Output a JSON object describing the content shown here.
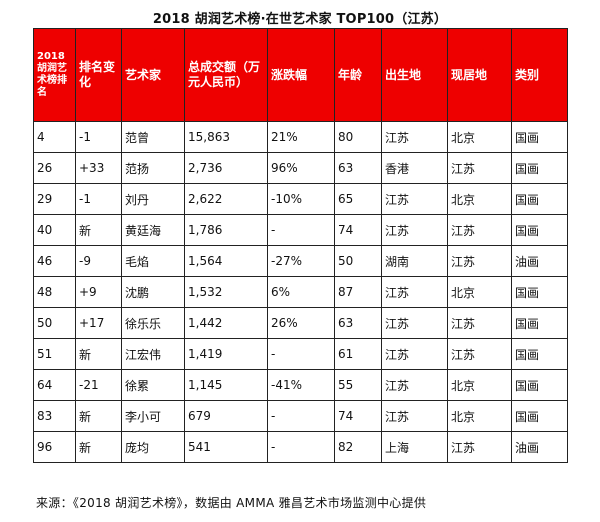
{
  "title": "2018 胡润艺术榜·在世艺术家 TOP100（江苏）",
  "headers": {
    "rank": "2018胡润艺术榜排名",
    "change": "排名变化",
    "artist": "艺术家",
    "turnover": "总成交额（万元人民币）",
    "growth": "涨跌幅",
    "age": "年龄",
    "birthplace": "出生地",
    "residence": "现居地",
    "category": "类别"
  },
  "rows": [
    {
      "rank": "4",
      "change": "-1",
      "artist": "范曾",
      "turnover": "15,863",
      "growth": "21%",
      "age": "80",
      "birthplace": "江苏",
      "residence": "北京",
      "category": "国画"
    },
    {
      "rank": "26",
      "change": "+33",
      "artist": "范扬",
      "turnover": "2,736",
      "growth": "96%",
      "age": "63",
      "birthplace": "香港",
      "residence": "江苏",
      "category": "国画"
    },
    {
      "rank": "29",
      "change": "-1",
      "artist": "刘丹",
      "turnover": "2,622",
      "growth": "-10%",
      "age": "65",
      "birthplace": "江苏",
      "residence": "北京",
      "category": "国画"
    },
    {
      "rank": "40",
      "change": "新",
      "artist": "黄廷海",
      "turnover": "1,786",
      "growth": "-",
      "age": "74",
      "birthplace": "江苏",
      "residence": "江苏",
      "category": "国画"
    },
    {
      "rank": "46",
      "change": "-9",
      "artist": "毛焰",
      "turnover": "1,564",
      "growth": "-27%",
      "age": "50",
      "birthplace": "湖南",
      "residence": "江苏",
      "category": "油画"
    },
    {
      "rank": "48",
      "change": "+9",
      "artist": "沈鹏",
      "turnover": "1,532",
      "growth": "6%",
      "age": "87",
      "birthplace": "江苏",
      "residence": "北京",
      "category": "国画"
    },
    {
      "rank": "50",
      "change": "+17",
      "artist": "徐乐乐",
      "turnover": "1,442",
      "growth": "26%",
      "age": "63",
      "birthplace": "江苏",
      "residence": "江苏",
      "category": "国画"
    },
    {
      "rank": "51",
      "change": "新",
      "artist": "江宏伟",
      "turnover": "1,419",
      "growth": "-",
      "age": "61",
      "birthplace": "江苏",
      "residence": "江苏",
      "category": "国画"
    },
    {
      "rank": "64",
      "change": "-21",
      "artist": "徐累",
      "turnover": "1,145",
      "growth": "-41%",
      "age": "55",
      "birthplace": "江苏",
      "residence": "北京",
      "category": "国画"
    },
    {
      "rank": "83",
      "change": "新",
      "artist": "李小可",
      "turnover": "679",
      "growth": "-",
      "age": "74",
      "birthplace": "江苏",
      "residence": "北京",
      "category": "国画"
    },
    {
      "rank": "96",
      "change": "新",
      "artist": "庞均",
      "turnover": "541",
      "growth": "-",
      "age": "82",
      "birthplace": "上海",
      "residence": "江苏",
      "category": "油画"
    }
  ],
  "source": "来源：《2018 胡润艺术榜》，数据由 AMMA 雅昌艺术市场监测中心提供"
}
